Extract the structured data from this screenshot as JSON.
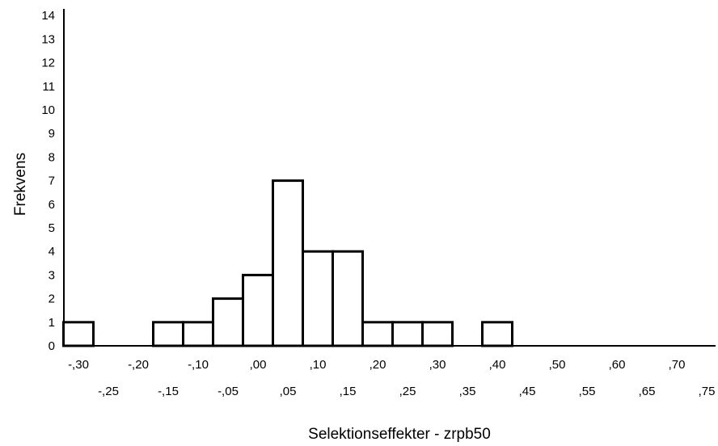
{
  "chart_data": {
    "type": "bar",
    "xlabel": "Selektionseffekter - zrpb50",
    "ylabel": "Frekvens",
    "ylim": [
      0,
      14
    ],
    "y_ticks": [
      "0",
      "1",
      "2",
      "3",
      "4",
      "5",
      "6",
      "7",
      "8",
      "9",
      "10",
      "11",
      "12",
      "13",
      "14"
    ],
    "bin_width": 0.05,
    "bins": [
      {
        "center": -0.3,
        "count": 1
      },
      {
        "center": -0.15,
        "count": 1
      },
      {
        "center": -0.1,
        "count": 1
      },
      {
        "center": -0.05,
        "count": 2
      },
      {
        "center": 0.0,
        "count": 3
      },
      {
        "center": 0.05,
        "count": 7
      },
      {
        "center": 0.1,
        "count": 4
      },
      {
        "center": 0.15,
        "count": 4
      },
      {
        "center": 0.2,
        "count": 1
      },
      {
        "center": 0.25,
        "count": 1
      },
      {
        "center": 0.3,
        "count": 1
      },
      {
        "center": 0.4,
        "count": 1
      }
    ],
    "x_ticks_upper": [
      {
        "value": -0.3,
        "label": "-,30"
      },
      {
        "value": -0.2,
        "label": "-,20"
      },
      {
        "value": -0.1,
        "label": "-,10"
      },
      {
        "value": 0.0,
        "label": ",00"
      },
      {
        "value": 0.1,
        "label": ",10"
      },
      {
        "value": 0.2,
        "label": ",20"
      },
      {
        "value": 0.3,
        "label": ",30"
      },
      {
        "value": 0.4,
        "label": ",40"
      },
      {
        "value": 0.5,
        "label": ",50"
      },
      {
        "value": 0.6,
        "label": ",60"
      },
      {
        "value": 0.7,
        "label": ",70"
      }
    ],
    "x_ticks_lower": [
      {
        "value": -0.25,
        "label": "-,25"
      },
      {
        "value": -0.15,
        "label": "-,15"
      },
      {
        "value": -0.05,
        "label": "-,05"
      },
      {
        "value": 0.05,
        "label": ",05"
      },
      {
        "value": 0.15,
        "label": ",15"
      },
      {
        "value": 0.25,
        "label": ",25"
      },
      {
        "value": 0.35,
        "label": ",35"
      },
      {
        "value": 0.45,
        "label": ",45"
      },
      {
        "value": 0.55,
        "label": ",55"
      },
      {
        "value": 0.65,
        "label": ",65"
      },
      {
        "value": 0.75,
        "label": ",75"
      }
    ],
    "grid": false,
    "legend": "none"
  }
}
